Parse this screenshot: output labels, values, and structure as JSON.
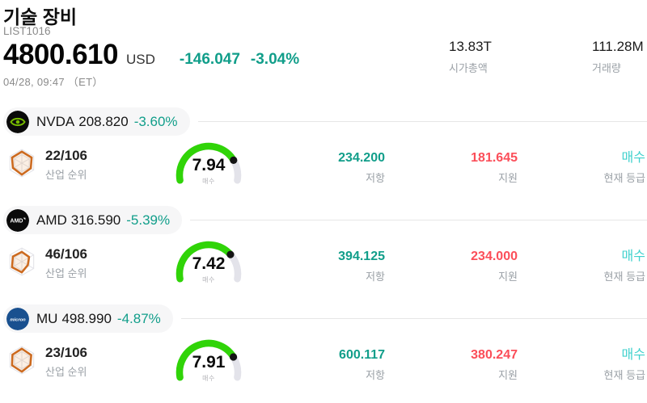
{
  "header": {
    "title": "기술 장비",
    "list_id": "LIST1016",
    "price": "4800.610",
    "currency": "USD",
    "change_abs": "-146.047",
    "change_pct": "-3.04%",
    "datetime": "04/28, 09:47 （ET）",
    "market_cap": {
      "value": "13.83T",
      "label": "시가총액"
    },
    "volume": {
      "value": "111.28M",
      "label": "거래량"
    }
  },
  "labels": {
    "industry_rank": "산업 순위",
    "resistance": "저항",
    "support": "지원",
    "current_rating": "현재 등급"
  },
  "colors": {
    "change_teal": "#119e8a",
    "resistance_teal": "#119e8a",
    "support_red": "#fb4e59",
    "rating_cyan": "#3fd1cd",
    "gauge_green": "#30d408",
    "nvidia_green": "#76b900",
    "micron_blue": "#19508f"
  },
  "stocks": [
    {
      "ticker": "NVDA",
      "price": "208.820",
      "change_pct": "-3.60%",
      "rank": "22/106",
      "gauge": {
        "value": 7.94,
        "max": 10,
        "label": "매수"
      },
      "resistance": "234.200",
      "support": "181.645",
      "rating": "매수"
    },
    {
      "ticker": "AMD",
      "price": "316.590",
      "change_pct": "-5.39%",
      "rank": "46/106",
      "gauge": {
        "value": 7.42,
        "max": 10,
        "label": "매수"
      },
      "resistance": "394.125",
      "support": "234.000",
      "rating": "매수"
    },
    {
      "ticker": "MU",
      "price": "498.990",
      "change_pct": "-4.87%",
      "rank": "23/106",
      "gauge": {
        "value": 7.91,
        "max": 10,
        "label": "매수"
      },
      "resistance": "600.117",
      "support": "380.247",
      "rating": "매수"
    }
  ]
}
